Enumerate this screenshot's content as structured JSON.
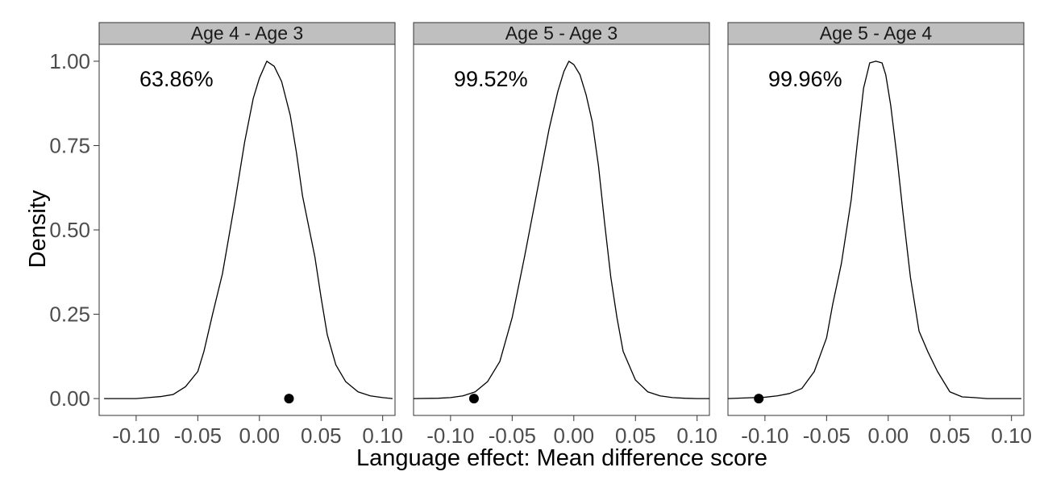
{
  "chart_data": {
    "type": "area",
    "xlabel": "Language effect: Mean difference score",
    "ylabel": "Density",
    "xlim": [
      -0.13,
      0.11
    ],
    "ylim": [
      -0.05,
      1.05
    ],
    "x_ticks": [
      -0.1,
      -0.05,
      0.0,
      0.05,
      0.1
    ],
    "x_tick_labels": [
      "-0.10",
      "-0.05",
      "0.00",
      "0.05",
      "0.10"
    ],
    "y_ticks": [
      0.0,
      0.25,
      0.5,
      0.75,
      1.0
    ],
    "y_tick_labels": [
      "0.00",
      "0.25",
      "0.50",
      "0.75",
      "1.00"
    ],
    "grid": false,
    "panels": [
      {
        "strip_label": "Age 4 - Age 3",
        "percent_label": "63.86%",
        "point": {
          "x": 0.024,
          "y": 0.0
        },
        "density": [
          [
            -0.126,
            0.0
          ],
          [
            -0.1,
            0.0
          ],
          [
            -0.09,
            0.003
          ],
          [
            -0.08,
            0.006
          ],
          [
            -0.07,
            0.012
          ],
          [
            -0.06,
            0.035
          ],
          [
            -0.05,
            0.08
          ],
          [
            -0.045,
            0.14
          ],
          [
            -0.038,
            0.25
          ],
          [
            -0.03,
            0.37
          ],
          [
            -0.02,
            0.58
          ],
          [
            -0.012,
            0.76
          ],
          [
            -0.005,
            0.89
          ],
          [
            0.0,
            0.95
          ],
          [
            0.006,
            1.0
          ],
          [
            0.012,
            0.985
          ],
          [
            0.018,
            0.94
          ],
          [
            0.025,
            0.84
          ],
          [
            0.03,
            0.73
          ],
          [
            0.035,
            0.6
          ],
          [
            0.04,
            0.51
          ],
          [
            0.045,
            0.42
          ],
          [
            0.05,
            0.3
          ],
          [
            0.055,
            0.19
          ],
          [
            0.062,
            0.1
          ],
          [
            0.07,
            0.05
          ],
          [
            0.08,
            0.02
          ],
          [
            0.09,
            0.008
          ],
          [
            0.1,
            0.003
          ],
          [
            0.108,
            0.0
          ]
        ]
      },
      {
        "strip_label": "Age 5 - Age 3",
        "percent_label": "99.52%",
        "point": {
          "x": -0.081,
          "y": 0.0
        },
        "density": [
          [
            -0.13,
            0.0
          ],
          [
            -0.11,
            0.001
          ],
          [
            -0.1,
            0.003
          ],
          [
            -0.09,
            0.008
          ],
          [
            -0.08,
            0.02
          ],
          [
            -0.07,
            0.05
          ],
          [
            -0.06,
            0.11
          ],
          [
            -0.05,
            0.24
          ],
          [
            -0.04,
            0.42
          ],
          [
            -0.03,
            0.61
          ],
          [
            -0.02,
            0.8
          ],
          [
            -0.013,
            0.91
          ],
          [
            -0.008,
            0.97
          ],
          [
            -0.004,
            1.0
          ],
          [
            0.0,
            0.99
          ],
          [
            0.005,
            0.96
          ],
          [
            0.01,
            0.9
          ],
          [
            0.015,
            0.82
          ],
          [
            0.02,
            0.69
          ],
          [
            0.025,
            0.52
          ],
          [
            0.03,
            0.36
          ],
          [
            0.035,
            0.24
          ],
          [
            0.04,
            0.14
          ],
          [
            0.05,
            0.055
          ],
          [
            0.06,
            0.02
          ],
          [
            0.07,
            0.008
          ],
          [
            0.08,
            0.003
          ],
          [
            0.09,
            0.001
          ],
          [
            0.1,
            0.0
          ],
          [
            0.11,
            0.0
          ]
        ]
      },
      {
        "strip_label": "Age 5 - Age 4",
        "percent_label": "99.96%",
        "point": {
          "x": -0.105,
          "y": 0.0
        },
        "density": [
          [
            -0.13,
            0.0
          ],
          [
            -0.115,
            0.002
          ],
          [
            -0.1,
            0.004
          ],
          [
            -0.09,
            0.008
          ],
          [
            -0.08,
            0.015
          ],
          [
            -0.07,
            0.03
          ],
          [
            -0.06,
            0.08
          ],
          [
            -0.05,
            0.18
          ],
          [
            -0.045,
            0.28
          ],
          [
            -0.038,
            0.4
          ],
          [
            -0.03,
            0.59
          ],
          [
            -0.025,
            0.76
          ],
          [
            -0.02,
            0.92
          ],
          [
            -0.015,
            0.995
          ],
          [
            -0.01,
            1.0
          ],
          [
            -0.005,
            0.995
          ],
          [
            -0.002,
            0.96
          ],
          [
            0.002,
            0.87
          ],
          [
            0.007,
            0.72
          ],
          [
            0.012,
            0.55
          ],
          [
            0.018,
            0.36
          ],
          [
            0.025,
            0.2
          ],
          [
            0.032,
            0.14
          ],
          [
            0.04,
            0.08
          ],
          [
            0.05,
            0.02
          ],
          [
            0.06,
            0.005
          ],
          [
            0.07,
            0.003
          ],
          [
            0.08,
            0.0
          ],
          [
            0.1,
            0.0
          ],
          [
            0.108,
            0.0
          ]
        ]
      }
    ]
  }
}
